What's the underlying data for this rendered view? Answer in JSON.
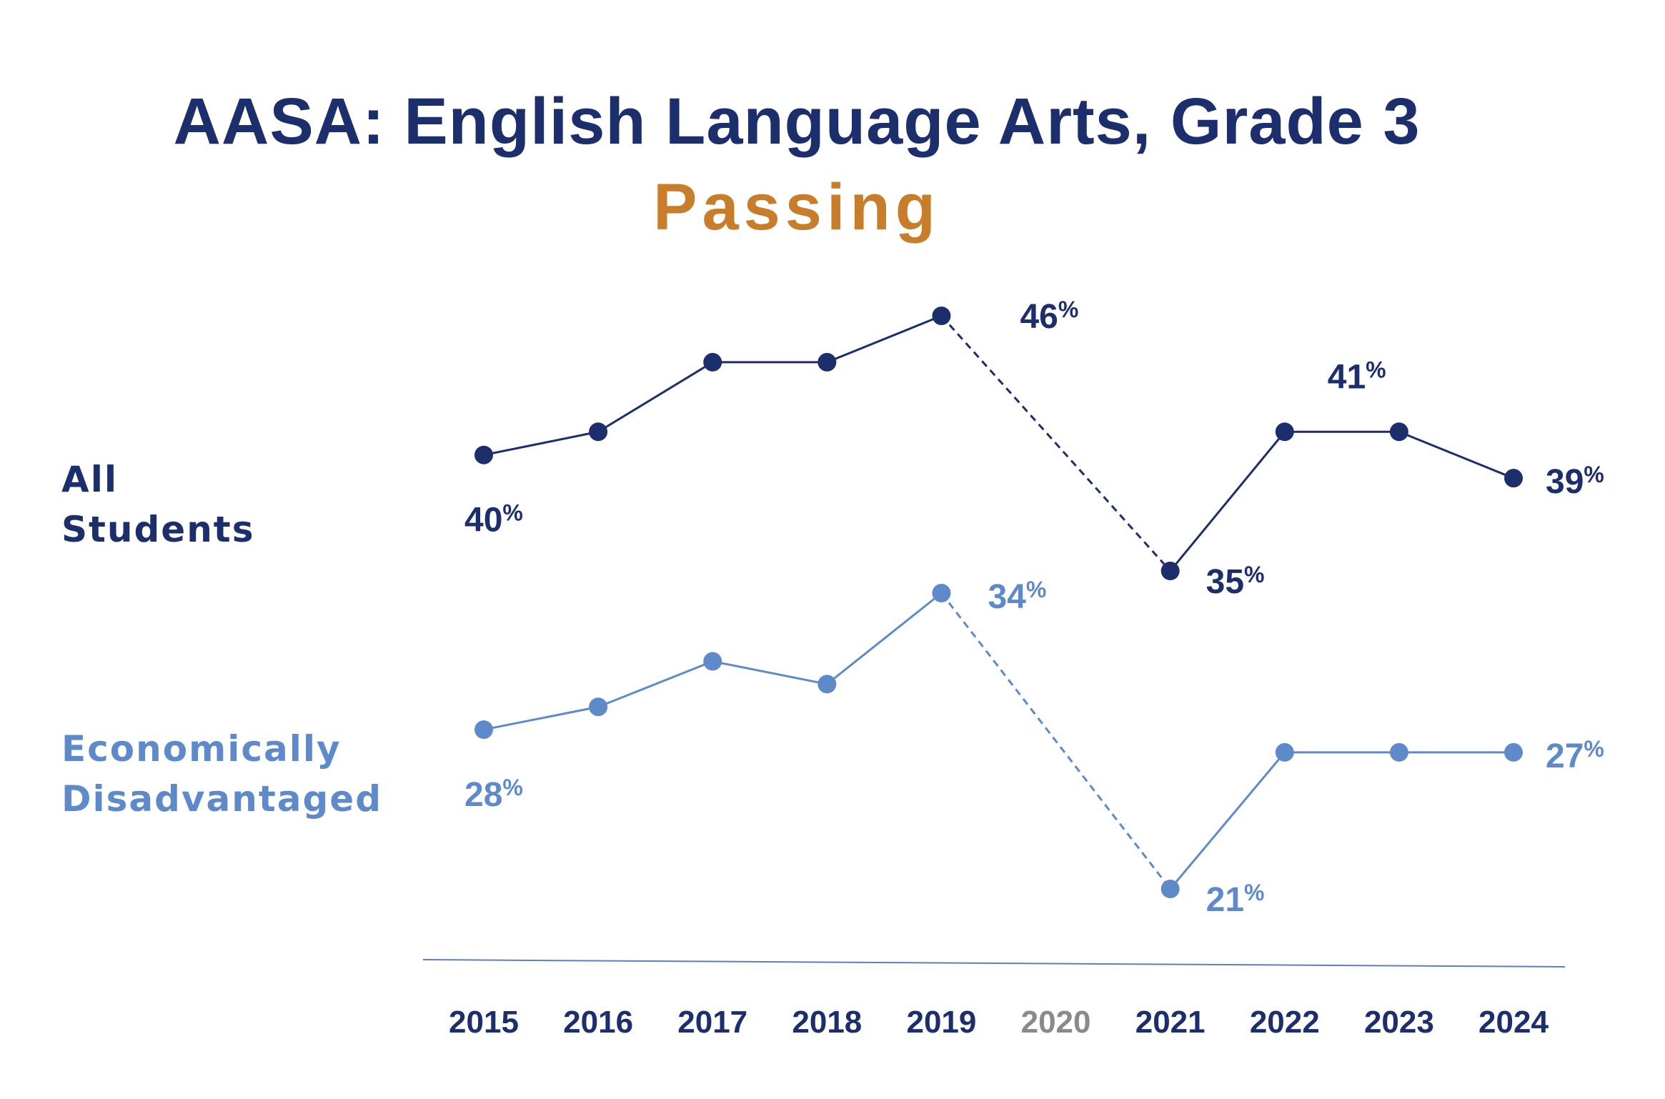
{
  "chart_data": {
    "type": "line",
    "title": "AASA: English Language Arts, Grade 3",
    "subtitle": "Passing",
    "categories": [
      "2015",
      "2016",
      "2017",
      "2018",
      "2019",
      "2020",
      "2021",
      "2022",
      "2023",
      "2024"
    ],
    "ylim": [
      18,
      50
    ],
    "grid": false,
    "legend": "left",
    "series": [
      {
        "name": "All Students",
        "color": "#1c2e6b",
        "values": [
          40,
          41,
          44,
          44,
          46,
          null,
          35,
          41,
          41,
          39
        ],
        "labels": [
          "40%",
          null,
          null,
          null,
          "46%",
          null,
          "35%",
          "41%",
          null,
          "39%"
        ]
      },
      {
        "name": "Economically Disadvantaged",
        "color": "#5f8ac9",
        "values": [
          28,
          29,
          31,
          30,
          34,
          null,
          21,
          27,
          27,
          27
        ],
        "labels": [
          "28%",
          null,
          null,
          null,
          "34%",
          null,
          "21%",
          null,
          null,
          "27%"
        ]
      }
    ],
    "gap_note": "2019 to 2021 connected by dashed line",
    "tick_colors": {
      "default": "#1c2e6b",
      "2020": "#8a8a8a"
    }
  },
  "labels": {
    "all_line1": "All",
    "all_line2": "Students",
    "econ_line1": "Economically",
    "econ_line2": "Disadvantaged"
  }
}
